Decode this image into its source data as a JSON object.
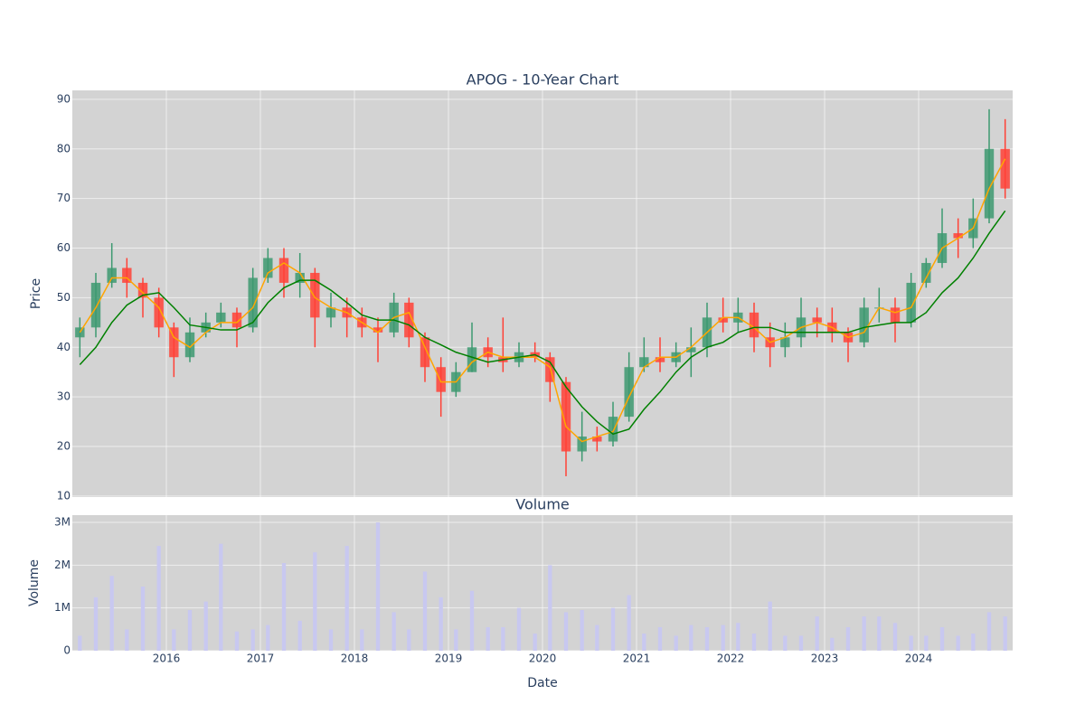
{
  "chart_data": [
    {
      "type": "candlestick",
      "title": "APOG - 10-Year Chart",
      "ylabel": "Price",
      "x": [
        2015.08,
        2015.25,
        2015.42,
        2015.58,
        2015.75,
        2015.92,
        2016.08,
        2016.25,
        2016.42,
        2016.58,
        2016.75,
        2016.92,
        2017.08,
        2017.25,
        2017.42,
        2017.58,
        2017.75,
        2017.92,
        2018.08,
        2018.25,
        2018.42,
        2018.58,
        2018.75,
        2018.92,
        2019.08,
        2019.25,
        2019.42,
        2019.58,
        2019.75,
        2019.92,
        2020.08,
        2020.25,
        2020.42,
        2020.58,
        2020.75,
        2020.92,
        2021.08,
        2021.25,
        2021.42,
        2021.58,
        2021.75,
        2021.92,
        2022.08,
        2022.25,
        2022.42,
        2022.58,
        2022.75,
        2022.92,
        2023.08,
        2023.25,
        2023.42,
        2023.58,
        2023.75,
        2023.92,
        2024.08,
        2024.25,
        2024.42,
        2024.58,
        2024.75,
        2024.92
      ],
      "open": [
        42,
        44,
        53,
        56,
        53,
        50,
        44,
        38,
        43,
        45,
        47,
        44,
        54,
        58,
        53,
        55,
        46,
        48,
        46,
        44,
        43,
        49,
        42,
        36,
        31,
        35,
        40,
        38,
        37,
        39,
        38,
        33,
        19,
        22,
        21,
        26,
        36,
        38,
        37,
        39,
        40,
        46,
        45,
        47,
        42,
        40,
        42,
        46,
        45,
        43,
        41,
        48,
        48,
        45,
        53,
        57,
        63,
        62,
        66,
        80
      ],
      "high": [
        46,
        55,
        61,
        58,
        54,
        52,
        45,
        46,
        47,
        49,
        48,
        56,
        60,
        60,
        59,
        56,
        51,
        50,
        48,
        46,
        51,
        50,
        43,
        38,
        37,
        45,
        42,
        46,
        41,
        41,
        39,
        34,
        27,
        24,
        29,
        39,
        42,
        42,
        41,
        44,
        49,
        50,
        50,
        49,
        45,
        45,
        50,
        48,
        48,
        44,
        50,
        52,
        50,
        55,
        58,
        68,
        66,
        70,
        88,
        86
      ],
      "low": [
        38,
        42,
        52,
        50,
        46,
        42,
        34,
        37,
        42,
        44,
        40,
        43,
        53,
        50,
        50,
        40,
        44,
        42,
        42,
        37,
        42,
        40,
        33,
        26,
        30,
        35,
        36,
        35,
        36,
        37,
        29,
        14,
        17,
        19,
        20,
        25,
        35,
        35,
        36,
        34,
        38,
        43,
        43,
        39,
        36,
        38,
        40,
        42,
        41,
        37,
        40,
        45,
        41,
        44,
        52,
        56,
        58,
        60,
        65,
        70
      ],
      "close": [
        44,
        53,
        56,
        53,
        50,
        44,
        38,
        43,
        45,
        47,
        44,
        54,
        58,
        53,
        55,
        46,
        48,
        46,
        44,
        43,
        49,
        42,
        36,
        31,
        35,
        40,
        38,
        37,
        39,
        38,
        33,
        19,
        22,
        21,
        26,
        36,
        38,
        37,
        39,
        40,
        46,
        45,
        47,
        42,
        40,
        42,
        46,
        45,
        43,
        41,
        48,
        48,
        45,
        53,
        57,
        63,
        62,
        66,
        80,
        72
      ],
      "increasing_color": "#3d9970",
      "decreasing_color": "#ff4136",
      "series": [
        {
          "color": "#ffa500",
          "values": [
            43,
            48,
            54,
            54,
            51,
            48,
            42,
            40,
            43,
            45,
            45,
            48,
            55,
            57,
            55,
            50,
            48,
            47,
            45,
            43,
            46,
            47,
            40,
            33,
            33,
            37,
            39,
            38,
            38,
            38,
            36,
            24,
            21,
            22,
            23,
            30,
            36,
            38,
            38,
            40,
            43,
            46,
            46,
            44,
            41,
            42,
            44,
            45,
            44,
            42,
            43,
            48,
            47,
            48,
            54,
            60,
            62,
            64,
            72,
            78
          ]
        },
        {
          "color": "#008000",
          "values": [
            36.5,
            40,
            45,
            48.5,
            50.5,
            51,
            48,
            44.5,
            44,
            43.5,
            43.5,
            45,
            49,
            52,
            53.5,
            53.5,
            51.5,
            49,
            46.5,
            45.5,
            45.5,
            44.5,
            42,
            40.5,
            39,
            38,
            37,
            37.5,
            38,
            38.5,
            37,
            32,
            28,
            25,
            22.5,
            23.5,
            27.5,
            31,
            35,
            38,
            40,
            41,
            43,
            44,
            44,
            43,
            43,
            43,
            43,
            43,
            44,
            44.5,
            45,
            45,
            47,
            51,
            54,
            58,
            63,
            67.5
          ]
        }
      ],
      "xlim": [
        2015,
        2025
      ],
      "ylim": [
        9.8,
        91.8
      ],
      "yticks": [
        10,
        20,
        30,
        40,
        50,
        60,
        70,
        80,
        90
      ],
      "xticks": [
        2016,
        2017,
        2018,
        2019,
        2020,
        2021,
        2022,
        2023,
        2024
      ],
      "grid": true
    },
    {
      "type": "bar",
      "title": "Volume",
      "ylabel": "Volume",
      "xlabel": "Date",
      "x": [
        2015.08,
        2015.25,
        2015.42,
        2015.58,
        2015.75,
        2015.92,
        2016.08,
        2016.25,
        2016.42,
        2016.58,
        2016.75,
        2016.92,
        2017.08,
        2017.25,
        2017.42,
        2017.58,
        2017.75,
        2017.92,
        2018.08,
        2018.25,
        2018.42,
        2018.58,
        2018.75,
        2018.92,
        2019.08,
        2019.25,
        2019.42,
        2019.58,
        2019.75,
        2019.92,
        2020.08,
        2020.25,
        2020.42,
        2020.58,
        2020.75,
        2020.92,
        2021.08,
        2021.25,
        2021.42,
        2021.58,
        2021.75,
        2021.92,
        2022.08,
        2022.25,
        2022.42,
        2022.58,
        2022.75,
        2022.92,
        2023.08,
        2023.25,
        2023.42,
        2023.58,
        2023.75,
        2023.92,
        2024.08,
        2024.25,
        2024.42,
        2024.58,
        2024.75,
        2024.92
      ],
      "values": [
        350000,
        1250000,
        1750000,
        500000,
        1500000,
        2450000,
        500000,
        950000,
        1150000,
        2500000,
        450000,
        500000,
        600000,
        2050000,
        700000,
        2300000,
        500000,
        2450000,
        500000,
        3000000,
        900000,
        500000,
        1850000,
        1250000,
        500000,
        1400000,
        550000,
        550000,
        1000000,
        400000,
        2000000,
        900000,
        950000,
        600000,
        1000000,
        1300000,
        400000,
        550000,
        350000,
        600000,
        550000,
        600000,
        650000,
        400000,
        1150000,
        350000,
        350000,
        800000,
        300000,
        550000,
        800000,
        800000,
        650000,
        350000,
        350000,
        550000,
        350000,
        400000,
        900000,
        800000
      ],
      "color": "#c8c8f0",
      "xlim": [
        2015,
        2025
      ],
      "ylim": [
        0,
        3170000
      ],
      "yticks": [
        0,
        {
          "value": 1000000,
          "label": "1M"
        },
        {
          "value": 2000000,
          "label": "2M"
        },
        {
          "value": 3000000,
          "label": "3M"
        }
      ],
      "xticks": [
        2016,
        2017,
        2018,
        2019,
        2020,
        2021,
        2022,
        2023,
        2024
      ],
      "grid": true
    }
  ]
}
